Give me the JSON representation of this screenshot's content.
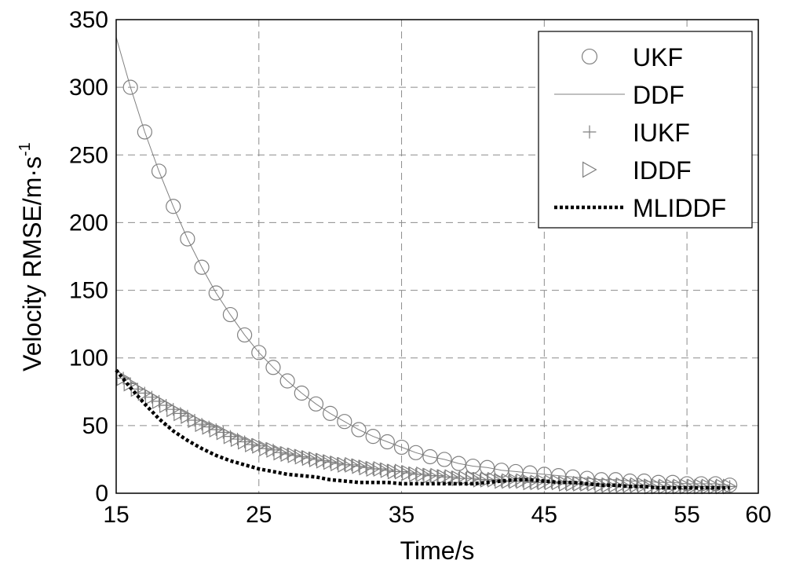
{
  "chart_data": {
    "type": "line",
    "xlabel": "Time/s",
    "ylabel": "Velocity RMSE/m·s",
    "ylabel_superscript": "-1",
    "xlim": [
      15,
      60
    ],
    "ylim": [
      0,
      350
    ],
    "xticks": [
      "15",
      "25",
      "35",
      "45",
      "55",
      "60"
    ],
    "yticks": [
      "0",
      "50",
      "100",
      "150",
      "200",
      "250",
      "300",
      "350"
    ],
    "grid": true,
    "legend_position": "top-right",
    "series": [
      {
        "name": "UKF",
        "marker": "circle",
        "color": "#808080",
        "x": [
          16,
          17,
          18,
          19,
          20,
          21,
          22,
          23,
          24,
          25,
          26,
          27,
          28,
          29,
          30,
          31,
          32,
          33,
          34,
          35,
          36,
          37,
          38,
          39,
          40,
          41,
          42,
          43,
          44,
          45,
          46,
          47,
          48,
          49,
          50,
          51,
          52,
          53,
          54,
          55,
          56,
          57,
          58
        ],
        "y": [
          300,
          267,
          238,
          212,
          188,
          167,
          148,
          132,
          117,
          104,
          93,
          83,
          74,
          66,
          59,
          53,
          47,
          42,
          38,
          34,
          30,
          27,
          25,
          22,
          20,
          19,
          17,
          16,
          15,
          14,
          13,
          12,
          11,
          10,
          10,
          9,
          9,
          8,
          8,
          7,
          7,
          7,
          6
        ]
      },
      {
        "name": "DDF",
        "marker": "none",
        "color": "#808080",
        "x": [
          15,
          16,
          17,
          18,
          19,
          20,
          21,
          22,
          23,
          24,
          25,
          26,
          27,
          28,
          29,
          30,
          31,
          32,
          33,
          34,
          35,
          36,
          37,
          38,
          39,
          40,
          41,
          42,
          43,
          44,
          45,
          46,
          47,
          48,
          49,
          50,
          51,
          52,
          53,
          54,
          55,
          56,
          57,
          58
        ],
        "y": [
          337,
          300,
          267,
          238,
          212,
          188,
          167,
          148,
          132,
          117,
          104,
          93,
          83,
          74,
          66,
          59,
          53,
          47,
          42,
          38,
          34,
          30,
          27,
          25,
          22,
          20,
          19,
          17,
          16,
          15,
          14,
          13,
          12,
          11,
          10,
          10,
          9,
          9,
          8,
          8,
          7,
          7,
          7,
          6
        ]
      },
      {
        "name": "IUKF",
        "marker": "plus",
        "color": "#808080",
        "x": [
          15.5,
          16,
          16.5,
          17,
          17.5,
          18,
          18.5,
          19,
          19.5,
          20,
          20.5,
          21,
          21.5,
          22,
          22.5,
          23,
          23.5,
          24,
          24.5,
          25,
          25.5,
          26,
          26.5,
          27,
          27.5,
          28,
          28.5,
          29,
          29.5,
          30,
          30.5,
          31,
          31.5,
          32,
          32.5,
          33,
          33.5,
          34,
          34.5,
          35,
          35.5,
          36,
          36.5,
          37,
          37.5,
          38,
          38.5,
          39,
          39.5,
          40,
          40.5,
          41,
          41.5,
          42,
          42.5,
          43,
          43.5,
          44,
          44.5,
          45,
          45.5,
          46,
          46.5,
          47,
          47.5,
          48,
          48.5,
          49,
          49.5,
          50,
          50.5,
          51,
          51.5,
          52,
          52.5,
          53,
          53.5,
          54,
          54.5,
          55,
          55.5,
          56,
          56.5,
          57,
          57.5,
          58
        ],
        "y": [
          85,
          81,
          77,
          74,
          71,
          68,
          65,
          62,
          59,
          57,
          54,
          51,
          49,
          47,
          45,
          42,
          40,
          38,
          36,
          35,
          33,
          32,
          30,
          29,
          28,
          27,
          26,
          25,
          24,
          23,
          22,
          21,
          21,
          20,
          19,
          18,
          18,
          17,
          16,
          16,
          15,
          14,
          14,
          13,
          13,
          12,
          12,
          11,
          11,
          11,
          10,
          10,
          10,
          9,
          9,
          9,
          9,
          8,
          8,
          8,
          8,
          8,
          7,
          7,
          7,
          7,
          7,
          6,
          6,
          6,
          6,
          6,
          6,
          6,
          5,
          5,
          5,
          5,
          5,
          5,
          5,
          5,
          5,
          5,
          5,
          5
        ]
      },
      {
        "name": "IDDF",
        "marker": "triangle-right",
        "color": "#808080",
        "x": [
          15.5,
          16,
          16.5,
          17,
          17.5,
          18,
          18.5,
          19,
          19.5,
          20,
          20.5,
          21,
          21.5,
          22,
          22.5,
          23,
          23.5,
          24,
          24.5,
          25,
          25.5,
          26,
          26.5,
          27,
          27.5,
          28,
          28.5,
          29,
          29.5,
          30,
          30.5,
          31,
          31.5,
          32,
          32.5,
          33,
          33.5,
          34,
          34.5,
          35,
          35.5,
          36,
          36.5,
          37,
          37.5,
          38,
          38.5,
          39,
          39.5,
          40,
          40.5,
          41,
          41.5,
          42,
          42.5,
          43,
          43.5,
          44,
          44.5,
          45,
          45.5,
          46,
          46.5,
          47,
          47.5,
          48,
          48.5,
          49,
          49.5,
          50,
          50.5,
          51,
          51.5,
          52,
          52.5,
          53,
          53.5,
          54,
          54.5,
          55,
          55.5,
          56,
          56.5,
          57,
          57.5,
          58
        ],
        "y": [
          85,
          81,
          77,
          74,
          71,
          68,
          65,
          62,
          59,
          57,
          54,
          51,
          49,
          47,
          45,
          42,
          40,
          38,
          36,
          35,
          33,
          32,
          30,
          29,
          28,
          27,
          26,
          25,
          24,
          23,
          22,
          21,
          21,
          20,
          19,
          18,
          18,
          17,
          16,
          16,
          15,
          14,
          14,
          13,
          13,
          12,
          12,
          11,
          11,
          11,
          10,
          10,
          10,
          9,
          9,
          9,
          9,
          8,
          8,
          8,
          8,
          8,
          7,
          7,
          7,
          7,
          7,
          6,
          6,
          6,
          6,
          6,
          6,
          6,
          5,
          5,
          5,
          5,
          5,
          5,
          5,
          5,
          5,
          5,
          5,
          5
        ]
      },
      {
        "name": "MLIDDF",
        "marker": "none",
        "color": "#000000",
        "x": [
          15,
          16,
          17,
          18,
          19,
          20,
          21,
          22,
          23,
          24,
          25,
          26,
          27,
          28,
          29,
          30,
          31,
          32,
          33,
          34,
          35,
          36,
          37,
          38,
          39,
          40,
          41,
          42,
          43,
          44,
          45,
          46,
          47,
          48,
          49,
          50,
          51,
          52,
          53,
          54,
          55,
          56,
          57,
          58
        ],
        "y": [
          91,
          78,
          66,
          55,
          46,
          39,
          33,
          28,
          24,
          21,
          18,
          16,
          14,
          13,
          12,
          10,
          9,
          8,
          8,
          8,
          7,
          7,
          7,
          7,
          7,
          7,
          8,
          9,
          10,
          10,
          9,
          8,
          8,
          7,
          6,
          6,
          5,
          5,
          4,
          4,
          4,
          4,
          4,
          4
        ]
      }
    ]
  }
}
